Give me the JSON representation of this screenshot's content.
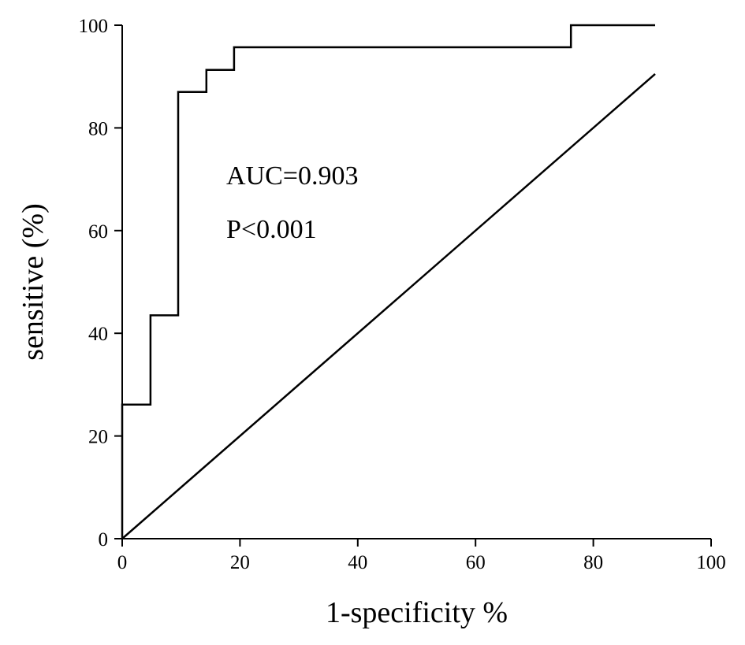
{
  "chart_data": {
    "type": "line",
    "xlabel": "1-specificity %",
    "ylabel": "sensitive (%)",
    "xlim": [
      0,
      100
    ],
    "ylim": [
      0,
      100
    ],
    "xticks": [
      0,
      20,
      40,
      60,
      80,
      100
    ],
    "yticks": [
      0,
      20,
      40,
      60,
      80,
      100
    ],
    "grid": false,
    "annotations": [
      "AUC=0.903",
      "P<0.001"
    ],
    "series": [
      {
        "style": "step",
        "x": [
          0,
          0,
          4.8,
          4.8,
          9.5,
          9.5,
          14.3,
          14.3,
          19,
          19,
          76.2,
          76.2,
          90.5
        ],
        "y": [
          0,
          26.1,
          26.1,
          43.5,
          43.5,
          87,
          87,
          91.3,
          91.3,
          95.7,
          95.7,
          100,
          100
        ]
      },
      {
        "style": "reference",
        "x": [
          0,
          90.5
        ],
        "y": [
          0,
          90.5
        ]
      }
    ]
  }
}
